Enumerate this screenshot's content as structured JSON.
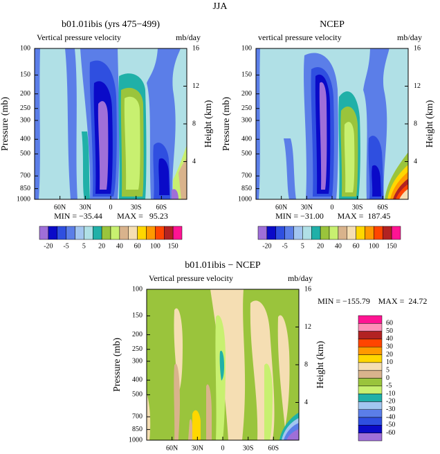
{
  "title": "JJA",
  "chart_data": [
    {
      "type": "contour",
      "title": "b01.01ibis (yrs 475−499)",
      "subtitle": "Vertical pressure velocity",
      "units": "mb/day",
      "ylabel": "Pressure (mb)",
      "y2label": "Height (km)",
      "ylim": [
        1000,
        100
      ],
      "yticks": [
        100,
        150,
        200,
        250,
        300,
        400,
        500,
        700,
        850,
        1000
      ],
      "log_y": true,
      "y2lim": [
        0,
        16
      ],
      "y2ticks": [
        4,
        8,
        12,
        16
      ],
      "xlim": [
        90,
        -90
      ],
      "xticks": [
        {
          "value": 60,
          "label": "60N"
        },
        {
          "value": 30,
          "label": "30N"
        },
        0,
        {
          "value": -30,
          "label": "30S"
        },
        {
          "value": -60,
          "label": "60S"
        }
      ],
      "min_text": "MIN = −35.44",
      "max_text": "MAX =   95.23",
      "colorbar": {
        "orientation": "horizontal",
        "labels": [
          -20,
          -5,
          5,
          20,
          40,
          60,
          100,
          150
        ],
        "colors": [
          "#9f6fd8",
          "#0a0ac8",
          "#2f4fe0",
          "#5b7ee8",
          "#a3c6f0",
          "#b0e0e6",
          "#20b0a8",
          "#9ac43c",
          "#c8f070",
          "#d9b38c",
          "#f5deb3",
          "#ffd700",
          "#ff9900",
          "#ff4500",
          "#b22222",
          "#ff1493"
        ]
      }
    },
    {
      "type": "contour",
      "title": "NCEP",
      "subtitle": "vertical pressure velocity",
      "units": "mb/day",
      "ylabel": "Pressure (mb)",
      "y2label": "Height (km)",
      "ylim": [
        1000,
        100
      ],
      "yticks": [
        100,
        150,
        200,
        250,
        300,
        400,
        500,
        700,
        850,
        1000
      ],
      "log_y": true,
      "y2lim": [
        0,
        16
      ],
      "y2ticks": [
        4,
        8,
        12,
        16
      ],
      "xlim": [
        90,
        -90
      ],
      "xticks": [
        {
          "value": 60,
          "label": "60N"
        },
        {
          "value": 30,
          "label": "30N"
        },
        0,
        {
          "value": -30,
          "label": "30S"
        },
        {
          "value": -60,
          "label": "60S"
        }
      ],
      "min_text": "MIN = −31.00",
      "max_text": "MAX =  187.45",
      "colorbar": {
        "orientation": "horizontal",
        "labels": [
          -20,
          -5,
          5,
          20,
          40,
          60,
          100,
          150
        ],
        "colors": [
          "#9f6fd8",
          "#0a0ac8",
          "#2f4fe0",
          "#5b7ee8",
          "#a3c6f0",
          "#b0e0e6",
          "#20b0a8",
          "#9ac43c",
          "#c8f070",
          "#d9b38c",
          "#f5deb3",
          "#ffd700",
          "#ff9900",
          "#ff4500",
          "#b22222",
          "#ff1493"
        ]
      }
    },
    {
      "type": "contour",
      "title": "b01.01ibis − NCEP",
      "subtitle": "Vertical pressure velocity",
      "units": "mb/day",
      "ylabel": "Pressure (mb)",
      "y2label": "Height (km)",
      "ylim": [
        1000,
        100
      ],
      "yticks": [
        100,
        150,
        200,
        250,
        300,
        400,
        500,
        700,
        850,
        1000
      ],
      "log_y": true,
      "y2lim": [
        0,
        16
      ],
      "y2ticks": [
        4,
        8,
        12,
        16
      ],
      "xlim": [
        90,
        -90
      ],
      "xticks": [
        {
          "value": 60,
          "label": "60N"
        },
        {
          "value": 30,
          "label": "30N"
        },
        0,
        {
          "value": -30,
          "label": "30S"
        },
        {
          "value": -60,
          "label": "60S"
        }
      ],
      "min_text": "MIN = −155.79",
      "max_text": "MAX =  24.72",
      "colorbar": {
        "orientation": "vertical",
        "labels": [
          60,
          50,
          40,
          30,
          20,
          10,
          5,
          0,
          -5,
          -10,
          -20,
          -30,
          -40,
          -50,
          -60
        ],
        "colors": [
          "#ff1493",
          "#ff8fb8",
          "#b22222",
          "#ff4500",
          "#ff9900",
          "#ffd700",
          "#f5deb3",
          "#d9b38c",
          "#9ac43c",
          "#c8f070",
          "#20b0a8",
          "#a3c6f0",
          "#5b7ee8",
          "#2f4fe0",
          "#0a0ac8",
          "#9f6fd8"
        ]
      }
    }
  ]
}
